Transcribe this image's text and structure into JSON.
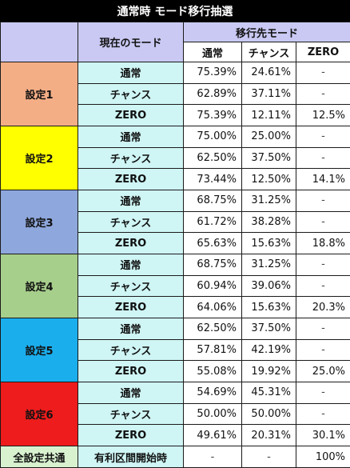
{
  "title": "通常時 モード移行抽選",
  "header": {
    "current_mode": "現在のモード",
    "target_mode": "移行先モード",
    "columns": [
      "通常",
      "チャンス",
      "ZERO"
    ]
  },
  "colors": {
    "setting1": "#f4ae86",
    "setting2": "#ffff00",
    "setting3": "#8ea7dc",
    "setting4": "#a7cf8c",
    "setting5": "#1aaeec",
    "setting6": "#ee1c1c"
  },
  "settings": [
    {
      "label": "設定1",
      "rows": [
        {
          "mode": "通常",
          "v": [
            "75.39%",
            "24.61%",
            "-"
          ]
        },
        {
          "mode": "チャンス",
          "v": [
            "62.89%",
            "37.11%",
            "-"
          ]
        },
        {
          "mode": "ZERO",
          "v": [
            "75.39%",
            "12.11%",
            "12.5%"
          ]
        }
      ]
    },
    {
      "label": "設定2",
      "rows": [
        {
          "mode": "通常",
          "v": [
            "75.00%",
            "25.00%",
            "-"
          ]
        },
        {
          "mode": "チャンス",
          "v": [
            "62.50%",
            "37.50%",
            "-"
          ]
        },
        {
          "mode": "ZERO",
          "v": [
            "73.44%",
            "12.50%",
            "14.1%"
          ]
        }
      ]
    },
    {
      "label": "設定3",
      "rows": [
        {
          "mode": "通常",
          "v": [
            "68.75%",
            "31.25%",
            "-"
          ]
        },
        {
          "mode": "チャンス",
          "v": [
            "61.72%",
            "38.28%",
            "-"
          ]
        },
        {
          "mode": "ZERO",
          "v": [
            "65.63%",
            "15.63%",
            "18.8%"
          ]
        }
      ]
    },
    {
      "label": "設定4",
      "rows": [
        {
          "mode": "通常",
          "v": [
            "68.75%",
            "31.25%",
            "-"
          ]
        },
        {
          "mode": "チャンス",
          "v": [
            "60.94%",
            "39.06%",
            "-"
          ]
        },
        {
          "mode": "ZERO",
          "v": [
            "64.06%",
            "15.63%",
            "20.3%"
          ]
        }
      ]
    },
    {
      "label": "設定5",
      "rows": [
        {
          "mode": "通常",
          "v": [
            "62.50%",
            "37.50%",
            "-"
          ]
        },
        {
          "mode": "チャンス",
          "v": [
            "57.81%",
            "42.19%",
            "-"
          ]
        },
        {
          "mode": "ZERO",
          "v": [
            "55.08%",
            "19.92%",
            "25.0%"
          ]
        }
      ]
    },
    {
      "label": "設定6",
      "rows": [
        {
          "mode": "通常",
          "v": [
            "54.69%",
            "45.31%",
            "-"
          ]
        },
        {
          "mode": "チャンス",
          "v": [
            "50.00%",
            "50.00%",
            "-"
          ]
        },
        {
          "mode": "ZERO",
          "v": [
            "49.61%",
            "20.31%",
            "30.1%"
          ]
        }
      ]
    }
  ],
  "footer": {
    "label": "全設定共通",
    "mode": "有利区間開始時",
    "v": [
      "-",
      "-",
      "100%"
    ]
  }
}
